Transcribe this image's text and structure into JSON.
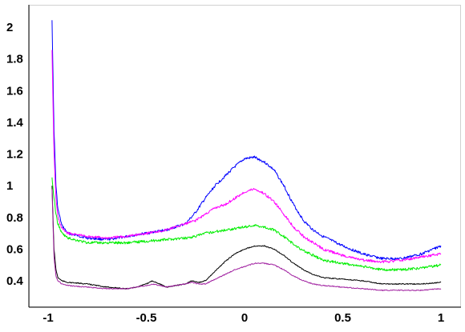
{
  "chart_data": {
    "type": "line",
    "title": "",
    "xlabel": "",
    "ylabel": "",
    "xlim": [
      -1,
      1
    ],
    "ylim": [
      0.3,
      2.1
    ],
    "x_ticks": [
      -1,
      -0.5,
      0,
      0.5,
      1
    ],
    "x_tick_labels": [
      "-1",
      "-0.5",
      "0",
      "0.5",
      "1"
    ],
    "y_ticks": [
      0.4,
      0.6,
      0.8,
      1.0,
      1.2,
      1.4,
      1.6,
      1.8,
      2.0
    ],
    "y_tick_labels": [
      "0.4",
      "0.6",
      "0.8",
      "1",
      "1.2",
      "1.4",
      "1.6",
      "1.8",
      "2"
    ],
    "grid": false,
    "legend": "none",
    "series": [
      {
        "color": "#0000ff",
        "x": [
          -0.98,
          -0.97,
          -0.96,
          -0.95,
          -0.93,
          -0.9,
          -0.8,
          -0.7,
          -0.6,
          -0.5,
          -0.4,
          -0.3,
          -0.25,
          -0.2,
          -0.15,
          -0.1,
          -0.05,
          0.0,
          0.05,
          0.1,
          0.15,
          0.2,
          0.25,
          0.3,
          0.35,
          0.4,
          0.5,
          0.6,
          0.7,
          0.8,
          0.9,
          1.0
        ],
        "y": [
          2.05,
          1.35,
          1.0,
          0.85,
          0.75,
          0.7,
          0.67,
          0.66,
          0.68,
          0.7,
          0.72,
          0.76,
          0.83,
          0.92,
          1.0,
          1.06,
          1.12,
          1.17,
          1.18,
          1.15,
          1.1,
          1.0,
          0.88,
          0.78,
          0.72,
          0.68,
          0.62,
          0.57,
          0.54,
          0.54,
          0.57,
          0.62
        ]
      },
      {
        "color": "#ff00ff",
        "x": [
          -0.98,
          -0.97,
          -0.96,
          -0.95,
          -0.93,
          -0.9,
          -0.8,
          -0.7,
          -0.6,
          -0.5,
          -0.4,
          -0.3,
          -0.25,
          -0.2,
          -0.15,
          -0.1,
          -0.05,
          0.0,
          0.05,
          0.1,
          0.15,
          0.2,
          0.25,
          0.3,
          0.35,
          0.4,
          0.5,
          0.6,
          0.7,
          0.8,
          0.9,
          1.0
        ],
        "y": [
          1.85,
          1.2,
          0.92,
          0.8,
          0.73,
          0.7,
          0.68,
          0.67,
          0.68,
          0.7,
          0.72,
          0.76,
          0.78,
          0.82,
          0.86,
          0.88,
          0.92,
          0.96,
          0.98,
          0.95,
          0.9,
          0.82,
          0.74,
          0.68,
          0.64,
          0.6,
          0.56,
          0.53,
          0.52,
          0.53,
          0.55,
          0.57
        ]
      },
      {
        "color": "#00ee00",
        "x": [
          -0.98,
          -0.97,
          -0.96,
          -0.95,
          -0.93,
          -0.9,
          -0.8,
          -0.7,
          -0.6,
          -0.5,
          -0.4,
          -0.3,
          -0.25,
          -0.2,
          -0.15,
          -0.1,
          -0.05,
          0.0,
          0.05,
          0.1,
          0.15,
          0.2,
          0.25,
          0.3,
          0.35,
          0.4,
          0.5,
          0.6,
          0.7,
          0.8,
          0.9,
          1.0
        ],
        "y": [
          1.05,
          0.92,
          0.82,
          0.76,
          0.7,
          0.67,
          0.64,
          0.64,
          0.64,
          0.65,
          0.66,
          0.67,
          0.68,
          0.7,
          0.71,
          0.72,
          0.73,
          0.74,
          0.75,
          0.74,
          0.72,
          0.68,
          0.63,
          0.59,
          0.56,
          0.53,
          0.51,
          0.49,
          0.47,
          0.47,
          0.48,
          0.5
        ]
      },
      {
        "color": "#000000",
        "x": [
          -0.98,
          -0.97,
          -0.96,
          -0.95,
          -0.93,
          -0.9,
          -0.8,
          -0.7,
          -0.6,
          -0.55,
          -0.5,
          -0.47,
          -0.43,
          -0.4,
          -0.35,
          -0.3,
          -0.27,
          -0.23,
          -0.2,
          -0.15,
          -0.1,
          -0.05,
          0.0,
          0.05,
          0.1,
          0.15,
          0.2,
          0.25,
          0.3,
          0.35,
          0.4,
          0.5,
          0.6,
          0.7,
          0.8,
          0.9,
          1.0
        ],
        "y": [
          1.0,
          0.6,
          0.47,
          0.42,
          0.4,
          0.39,
          0.38,
          0.36,
          0.35,
          0.36,
          0.38,
          0.4,
          0.38,
          0.36,
          0.37,
          0.38,
          0.4,
          0.39,
          0.4,
          0.46,
          0.52,
          0.57,
          0.6,
          0.62,
          0.62,
          0.6,
          0.56,
          0.51,
          0.47,
          0.44,
          0.42,
          0.41,
          0.4,
          0.38,
          0.38,
          0.38,
          0.39
        ]
      },
      {
        "color": "#a020a0",
        "x": [
          -0.98,
          -0.97,
          -0.96,
          -0.95,
          -0.93,
          -0.9,
          -0.8,
          -0.7,
          -0.6,
          -0.55,
          -0.5,
          -0.47,
          -0.43,
          -0.4,
          -0.35,
          -0.3,
          -0.27,
          -0.23,
          -0.2,
          -0.15,
          -0.1,
          -0.05,
          0.0,
          0.05,
          0.1,
          0.15,
          0.2,
          0.25,
          0.3,
          0.35,
          0.4,
          0.5,
          0.6,
          0.7,
          0.8,
          0.9,
          1.0
        ],
        "y": [
          0.98,
          0.55,
          0.43,
          0.4,
          0.38,
          0.37,
          0.36,
          0.35,
          0.35,
          0.36,
          0.37,
          0.38,
          0.37,
          0.36,
          0.37,
          0.38,
          0.39,
          0.38,
          0.38,
          0.41,
          0.44,
          0.47,
          0.49,
          0.51,
          0.51,
          0.5,
          0.47,
          0.43,
          0.4,
          0.38,
          0.37,
          0.36,
          0.35,
          0.34,
          0.34,
          0.34,
          0.35
        ]
      }
    ]
  }
}
